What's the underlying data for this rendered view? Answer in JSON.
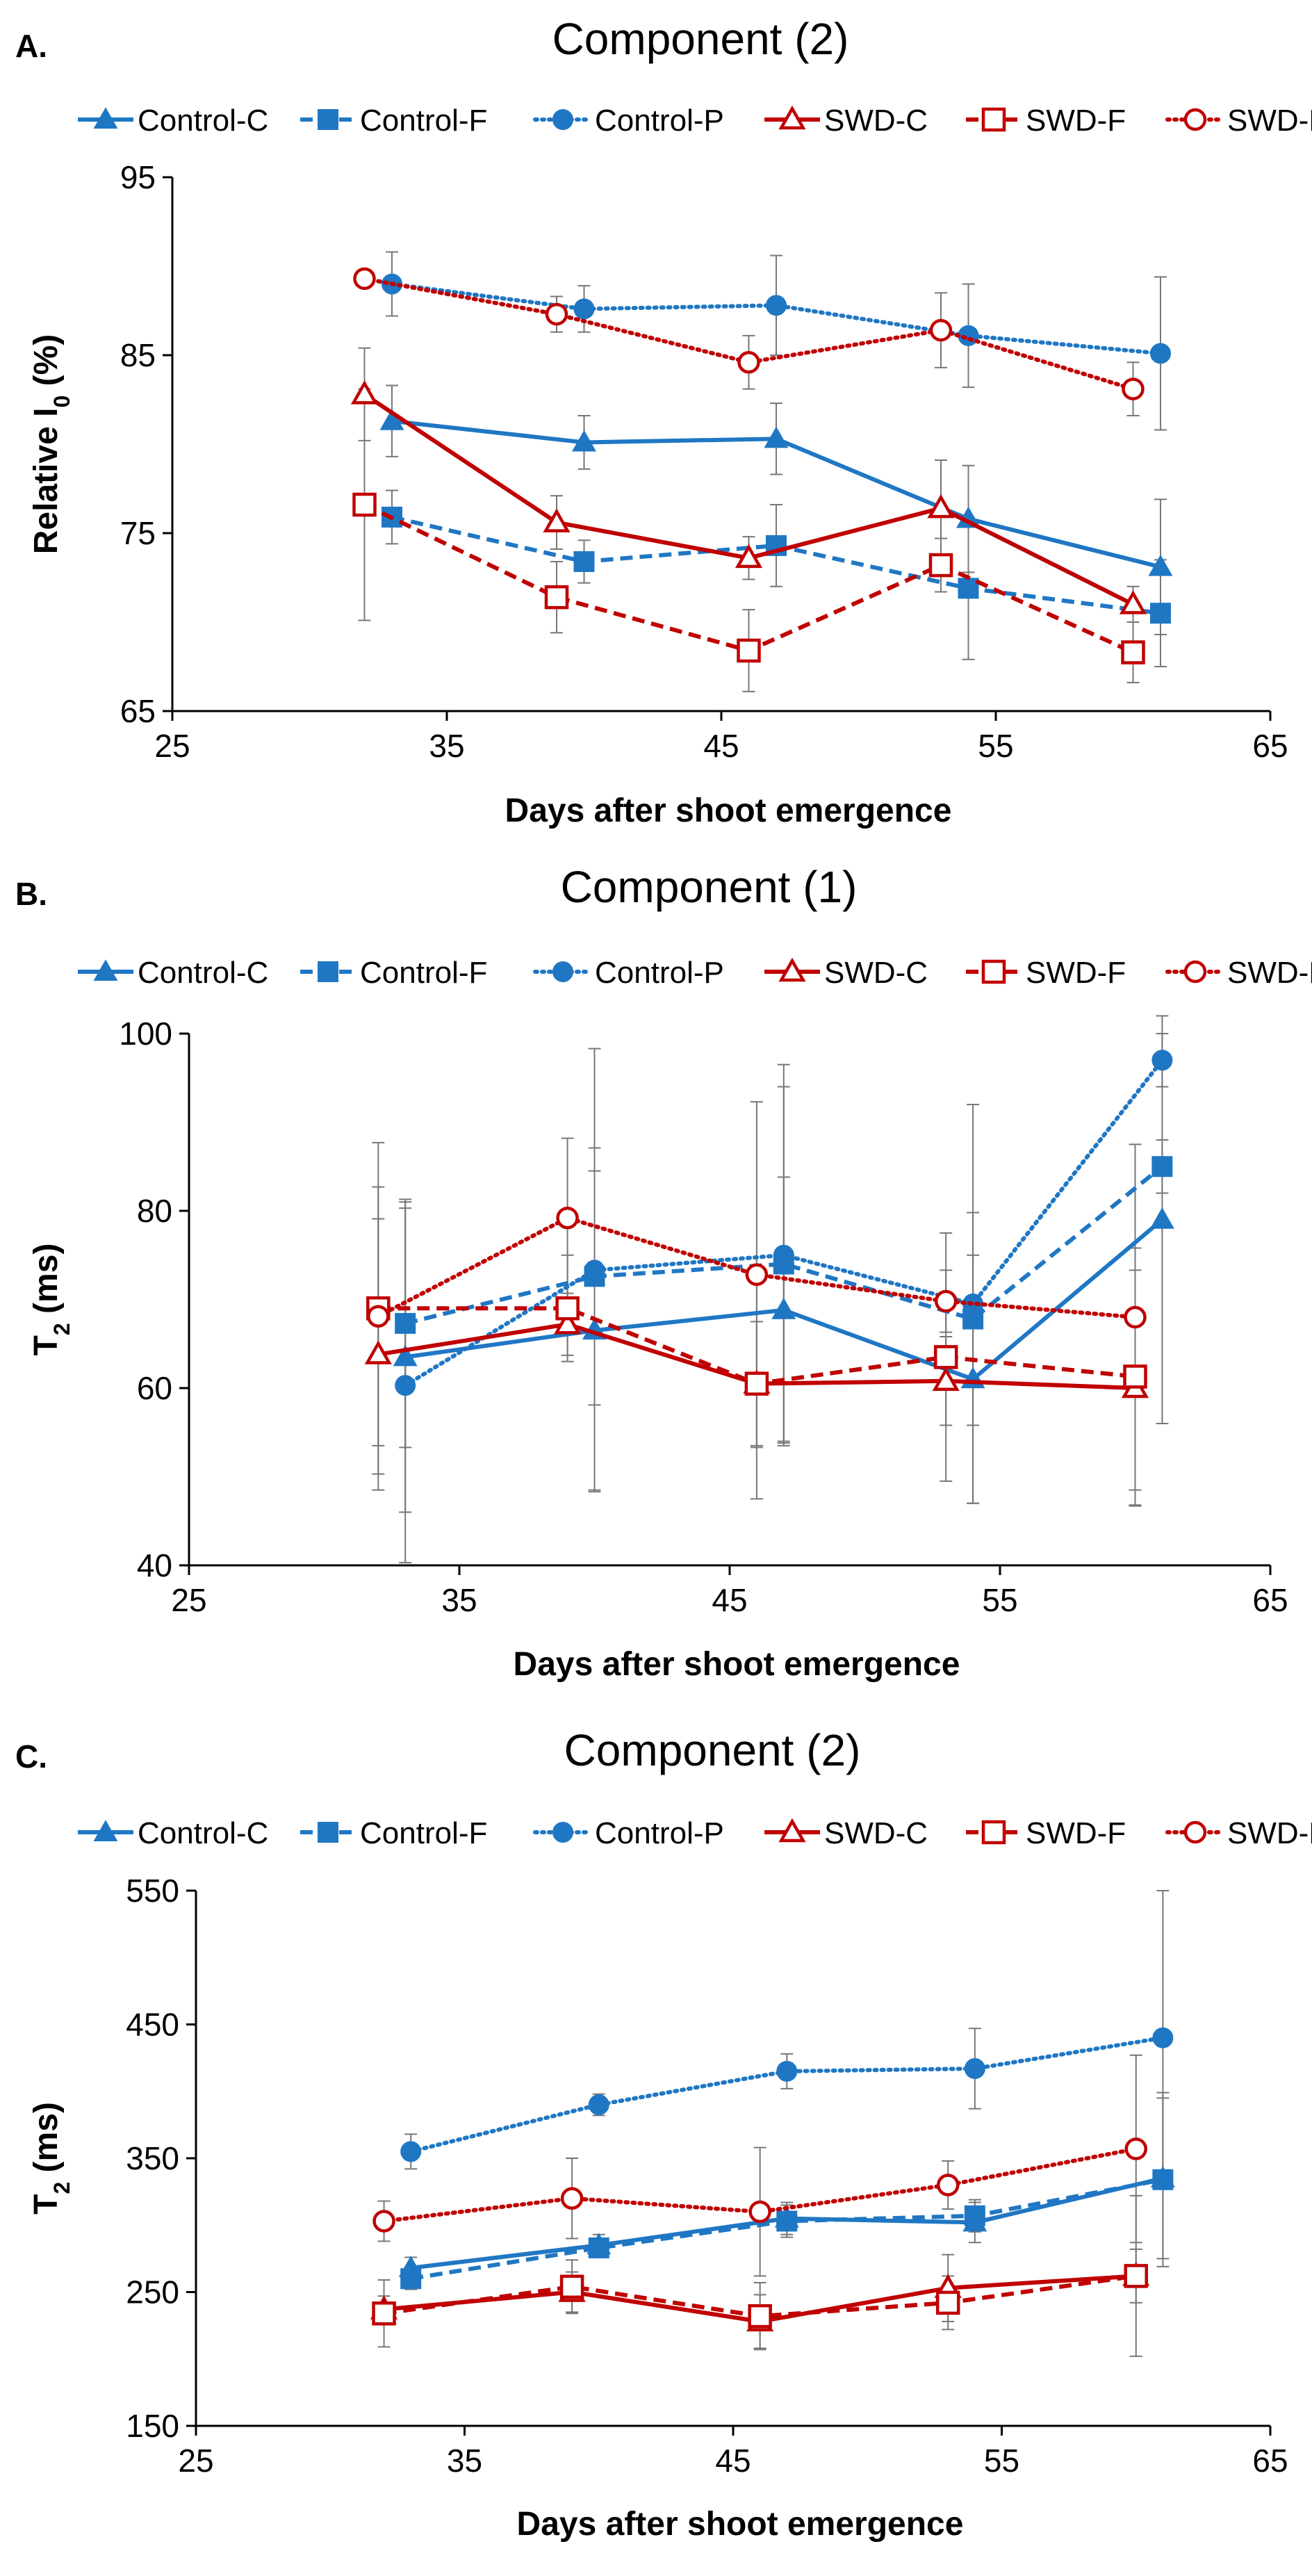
{
  "colors": {
    "blue": "#1f77c4",
    "red": "#c00000",
    "err": "#777777"
  },
  "series_styles": {
    "Control-C": {
      "color": "blue",
      "marker": "triangle-filled",
      "dash": "solid"
    },
    "Control-F": {
      "color": "blue",
      "marker": "square-filled",
      "dash": "dashed"
    },
    "Control-P": {
      "color": "blue",
      "marker": "circle-filled",
      "dash": "dotted"
    },
    "SWD-C": {
      "color": "red",
      "marker": "triangle-open",
      "dash": "solid"
    },
    "SWD-F": {
      "color": "red",
      "marker": "square-open",
      "dash": "dashed"
    },
    "SWD-P": {
      "color": "red",
      "marker": "circle-open",
      "dash": "dotted"
    }
  },
  "chart_data": [
    {
      "panel": "A.",
      "type": "line",
      "title": "Component (2)",
      "ylabel_main": "Relative I",
      "ylabel_sub": "0",
      "ylabel_tail": " (%)",
      "xlabel": "Days after shoot emergence",
      "xlim": [
        25,
        65
      ],
      "ylim": [
        65,
        95
      ],
      "xticks": [
        25,
        35,
        45,
        55,
        65
      ],
      "yticks": [
        65,
        75,
        85,
        95
      ],
      "series": [
        {
          "name": "Control-C",
          "x": [
            33,
            40,
            47,
            54,
            61
          ],
          "y": [
            81.3,
            80.1,
            80.3,
            75.8,
            73.1
          ],
          "err": [
            2.0,
            1.5,
            2.0,
            3.0,
            3.8
          ]
        },
        {
          "name": "Control-F",
          "x": [
            33,
            40,
            47,
            54,
            61
          ],
          "y": [
            75.9,
            73.4,
            74.3,
            71.9,
            70.5
          ],
          "err": [
            1.5,
            1.2,
            2.3,
            4.0,
            3.0
          ]
        },
        {
          "name": "Control-P",
          "x": [
            33,
            40,
            47,
            54,
            61
          ],
          "y": [
            89.0,
            87.6,
            87.8,
            86.1,
            85.1
          ],
          "err": [
            1.8,
            1.3,
            2.8,
            2.9,
            4.3
          ]
        },
        {
          "name": "SWD-C",
          "x": [
            32,
            39,
            46,
            53,
            60
          ],
          "y": [
            82.8,
            75.6,
            73.6,
            76.4,
            71.0
          ],
          "err": [
            2.6,
            1.5,
            1.2,
            2.7,
            1.0
          ]
        },
        {
          "name": "SWD-F",
          "x": [
            32,
            39,
            46,
            53,
            60
          ],
          "y": [
            76.6,
            71.4,
            68.4,
            73.2,
            68.3
          ],
          "err": [
            6.5,
            2.0,
            2.3,
            1.5,
            1.7
          ]
        },
        {
          "name": "SWD-P",
          "x": [
            32,
            39,
            46,
            53,
            60
          ],
          "y": [
            89.3,
            87.3,
            84.6,
            86.4,
            83.1
          ],
          "err": [
            0.0,
            1.0,
            1.5,
            2.1,
            1.5
          ]
        }
      ]
    },
    {
      "panel": "B.",
      "type": "line",
      "title": "Component (1)",
      "ylabel_main": "T",
      "ylabel_sub": "2",
      "ylabel_tail": " (ms)",
      "xlabel": "Days after shoot emergence",
      "xlim": [
        25,
        65
      ],
      "ylim": [
        40,
        100
      ],
      "xticks": [
        25,
        35,
        45,
        55,
        65
      ],
      "yticks": [
        40,
        60,
        80,
        100
      ],
      "series": [
        {
          "name": "Control-C",
          "x": [
            33,
            40,
            47,
            54,
            61
          ],
          "y": [
            63.5,
            66.5,
            68.8,
            61.0,
            79.0
          ],
          "err": [
            17.5,
            18.0,
            15.0,
            14.0,
            23.0
          ]
        },
        {
          "name": "Control-F",
          "x": [
            33,
            40,
            47,
            54,
            61
          ],
          "y": [
            67.3,
            72.6,
            74.0,
            67.8,
            85.0
          ],
          "err": [
            14.0,
            14.5,
            20.0,
            12.0,
            3.0
          ]
        },
        {
          "name": "Control-P",
          "x": [
            33,
            40,
            47,
            54,
            61
          ],
          "y": [
            60.3,
            73.3,
            75.0,
            69.5,
            97.0
          ],
          "err": [
            20.0,
            25.0,
            21.5,
            22.5,
            3.0
          ]
        },
        {
          "name": "SWD-C",
          "x": [
            32,
            39,
            46,
            53,
            60
          ],
          "y": [
            63.8,
            67.2,
            60.5,
            60.8,
            60.0
          ],
          "err": [
            15.3,
            3.5,
            7.0,
            5.0,
            13.3
          ]
        },
        {
          "name": "SWD-F",
          "x": [
            32,
            39,
            46,
            53,
            60
          ],
          "y": [
            69.0,
            69.0,
            60.5,
            63.5,
            61.3
          ],
          "err": [
            18.7,
            6.0,
            13.0,
            14.0,
            14.5
          ]
        },
        {
          "name": "SWD-P",
          "x": [
            32,
            39,
            46,
            53,
            60
          ],
          "y": [
            68.1,
            79.2,
            72.8,
            69.8,
            68.0
          ],
          "err": [
            14.6,
            9.0,
            19.5,
            3.5,
            19.5
          ]
        }
      ]
    },
    {
      "panel": "C.",
      "type": "line",
      "title": "Component (2)",
      "ylabel_main": "T",
      "ylabel_sub": "2",
      "ylabel_tail": " (ms)",
      "xlabel": "Days after shoot emergence",
      "xlim": [
        25,
        65
      ],
      "ylim": [
        150,
        550
      ],
      "xticks": [
        25,
        35,
        45,
        55,
        65
      ],
      "yticks": [
        150,
        250,
        350,
        450,
        550
      ],
      "series": [
        {
          "name": "Control-C",
          "x": [
            33,
            40,
            47,
            54,
            61
          ],
          "y": [
            268,
            285,
            305,
            302,
            335
          ],
          "err": [
            8,
            8,
            12,
            15,
            60
          ]
        },
        {
          "name": "Control-F",
          "x": [
            33,
            40,
            47,
            54,
            61
          ],
          "y": [
            260,
            283,
            303,
            307,
            334
          ],
          "err": [
            8,
            7,
            12,
            12,
            65
          ]
        },
        {
          "name": "Control-P",
          "x": [
            33,
            40,
            47,
            54,
            61
          ],
          "y": [
            355,
            390,
            415,
            417,
            440
          ],
          "err": [
            13,
            8,
            13,
            30,
            110
          ]
        },
        {
          "name": "SWD-C",
          "x": [
            32,
            39,
            46,
            53,
            60
          ],
          "y": [
            237,
            250,
            228,
            253,
            262
          ],
          "err": [
            10,
            15,
            20,
            25,
            20
          ]
        },
        {
          "name": "SWD-F",
          "x": [
            32,
            39,
            46,
            53,
            60
          ],
          "y": [
            234,
            254,
            232,
            242,
            262
          ],
          "err": [
            25,
            20,
            25,
            20,
            60
          ]
        },
        {
          "name": "SWD-P",
          "x": [
            32,
            39,
            46,
            53,
            60
          ],
          "y": [
            303,
            320,
            310,
            330,
            357
          ],
          "err": [
            15,
            30,
            48,
            18,
            70
          ]
        }
      ]
    }
  ]
}
